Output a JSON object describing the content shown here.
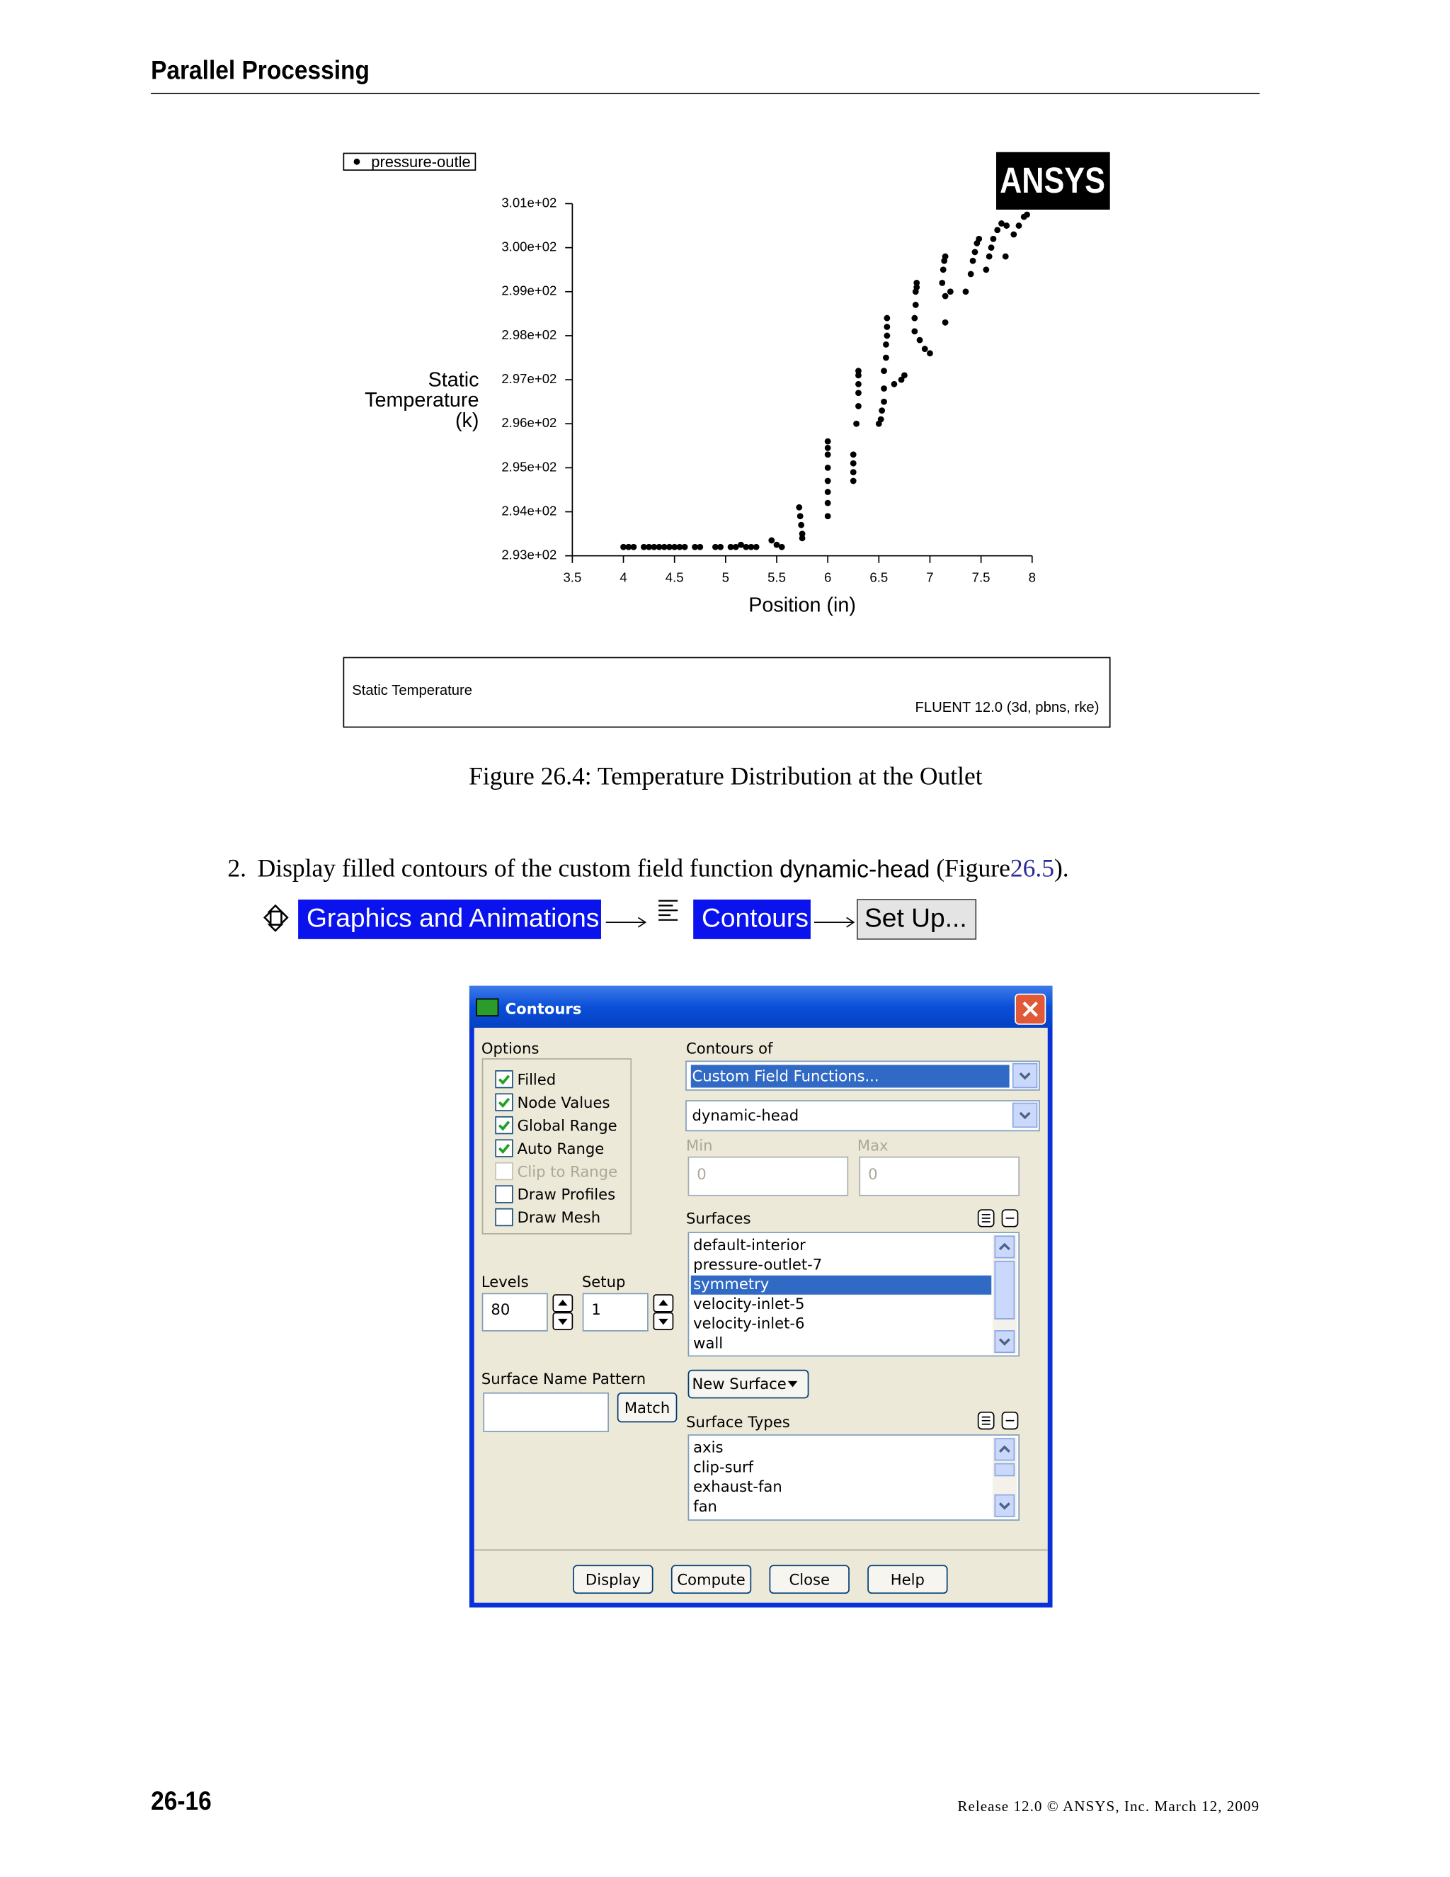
{
  "header": {
    "title": "Parallel Processing"
  },
  "chart_data": {
    "type": "scatter",
    "xlabel": "Position (in)",
    "ylabel": [
      "Static",
      "Temperature",
      "(k)"
    ],
    "xlim": [
      3.5,
      8
    ],
    "ylim": [
      293,
      301
    ],
    "xticks": [
      3.5,
      4,
      4.5,
      5,
      5.5,
      6,
      6.5,
      7,
      7.5,
      8
    ],
    "yticks": [
      {
        "value": 293,
        "label": "2.93e+02"
      },
      {
        "value": 294,
        "label": "2.94e+02"
      },
      {
        "value": 295,
        "label": "2.95e+02"
      },
      {
        "value": 296,
        "label": "2.96e+02"
      },
      {
        "value": 297,
        "label": "2.97e+02"
      },
      {
        "value": 298,
        "label": "2.98e+02"
      },
      {
        "value": 299,
        "label": "2.99e+02"
      },
      {
        "value": 300,
        "label": "3.00e+02"
      },
      {
        "value": 301,
        "label": "3.01e+02"
      }
    ],
    "x": [
      4.0,
      4.05,
      4.1,
      4.2,
      4.25,
      4.3,
      4.35,
      4.4,
      4.45,
      4.5,
      4.55,
      4.6,
      4.7,
      4.75,
      4.9,
      4.95,
      5.05,
      5.1,
      5.15,
      5.2,
      5.25,
      5.3,
      5.45,
      5.5,
      5.55,
      5.72,
      5.73,
      5.74,
      5.75,
      5.75,
      6.0,
      6.0,
      6.0,
      6.0,
      6.0,
      6.0,
      6.0,
      6.0,
      6.25,
      6.25,
      6.25,
      6.25,
      6.28,
      6.3,
      6.3,
      6.3,
      6.3,
      6.3,
      6.5,
      6.52,
      6.53,
      6.55,
      6.55,
      6.55,
      6.57,
      6.57,
      6.58,
      6.58,
      6.58,
      6.65,
      6.72,
      6.75,
      6.85,
      6.85,
      6.86,
      6.86,
      6.87,
      6.87,
      6.9,
      6.95,
      7.0,
      7.12,
      7.13,
      7.14,
      7.15,
      7.15,
      7.15,
      7.2,
      7.35,
      7.4,
      7.42,
      7.44,
      7.46,
      7.48,
      7.55,
      7.58,
      7.6,
      7.62,
      7.66,
      7.7,
      7.74,
      7.75,
      7.82,
      7.87,
      7.92,
      7.95
    ],
    "series": [
      {
        "name": "pressure-outle",
        "color": "#000000",
        "values": [
          293.2,
          293.2,
          293.2,
          293.2,
          293.2,
          293.2,
          293.2,
          293.2,
          293.2,
          293.2,
          293.2,
          293.2,
          293.2,
          293.2,
          293.2,
          293.2,
          293.2,
          293.2,
          293.25,
          293.2,
          293.2,
          293.2,
          293.35,
          293.25,
          293.2,
          294.1,
          293.9,
          293.7,
          293.5,
          293.4,
          295.6,
          295.45,
          295.3,
          295.0,
          294.7,
          294.45,
          294.2,
          293.9,
          294.7,
          294.9,
          295.1,
          295.3,
          296.0,
          296.4,
          296.7,
          296.9,
          297.1,
          297.2,
          296.0,
          296.1,
          296.3,
          296.5,
          296.8,
          297.2,
          297.5,
          297.8,
          298.0,
          298.2,
          298.4,
          296.9,
          297.0,
          297.1,
          298.1,
          298.4,
          298.7,
          299.0,
          299.1,
          299.2,
          297.9,
          297.7,
          297.6,
          299.2,
          299.5,
          299.7,
          299.8,
          298.3,
          298.9,
          299.0,
          299.0,
          299.4,
          299.7,
          299.9,
          300.1,
          300.2,
          299.5,
          299.8,
          300.0,
          300.2,
          300.4,
          300.55,
          299.8,
          300.5,
          300.3,
          300.5,
          300.7,
          300.75
        ]
      }
    ],
    "annotations": [
      "ANSYS",
      "Static Temperature",
      "FLUENT 12.0 (3d, pbns, rke)"
    ]
  },
  "caption": "Figure 26.4: Temperature Distribution at the Outlet",
  "step": {
    "number": "2.",
    "text": "Display filled contours of the custom field function",
    "code": "dynamic-head",
    "open": "(Figure",
    "ref": "26.5",
    "close": ")."
  },
  "nav": [
    "Graphics and Animations",
    "Contours",
    "Set Up..."
  ],
  "dialog": {
    "title": "Contours",
    "options_label": "Options",
    "options": [
      {
        "label": "Filled",
        "checked": true,
        "enabled": true
      },
      {
        "label": "Node Values",
        "checked": true,
        "enabled": true
      },
      {
        "label": "Global Range",
        "checked": true,
        "enabled": true
      },
      {
        "label": "Auto Range",
        "checked": true,
        "enabled": true
      },
      {
        "label": "Clip to Range",
        "checked": false,
        "enabled": false
      },
      {
        "label": "Draw Profiles",
        "checked": false,
        "enabled": true
      },
      {
        "label": "Draw Mesh",
        "checked": false,
        "enabled": true
      }
    ],
    "contours_of_label": "Contours of",
    "contours_of": "Custom Field Functions...",
    "field": "dynamic-head",
    "min_label": "Min",
    "max_label": "Max",
    "min": 0,
    "max": 0,
    "surfaces_label": "Surfaces",
    "surfaces": [
      "default-interior",
      "pressure-outlet-7",
      "symmetry",
      "velocity-inlet-5",
      "velocity-inlet-6",
      "wall"
    ],
    "selected_surface": 2,
    "levels_label": "Levels",
    "levels": 80,
    "setup_label": "Setup",
    "setup": 1,
    "pattern_label": "Surface Name Pattern",
    "match": "Match",
    "new_surface": "New Surface",
    "surface_types_label": "Surface Types",
    "surface_types": [
      "axis",
      "clip-surf",
      "exhaust-fan",
      "fan"
    ],
    "buttons": [
      "Display",
      "Compute",
      "Close",
      "Help"
    ]
  },
  "footer": {
    "page": "26-16",
    "release": "Release 12.0 © ANSYS, Inc. March 12, 2009"
  }
}
